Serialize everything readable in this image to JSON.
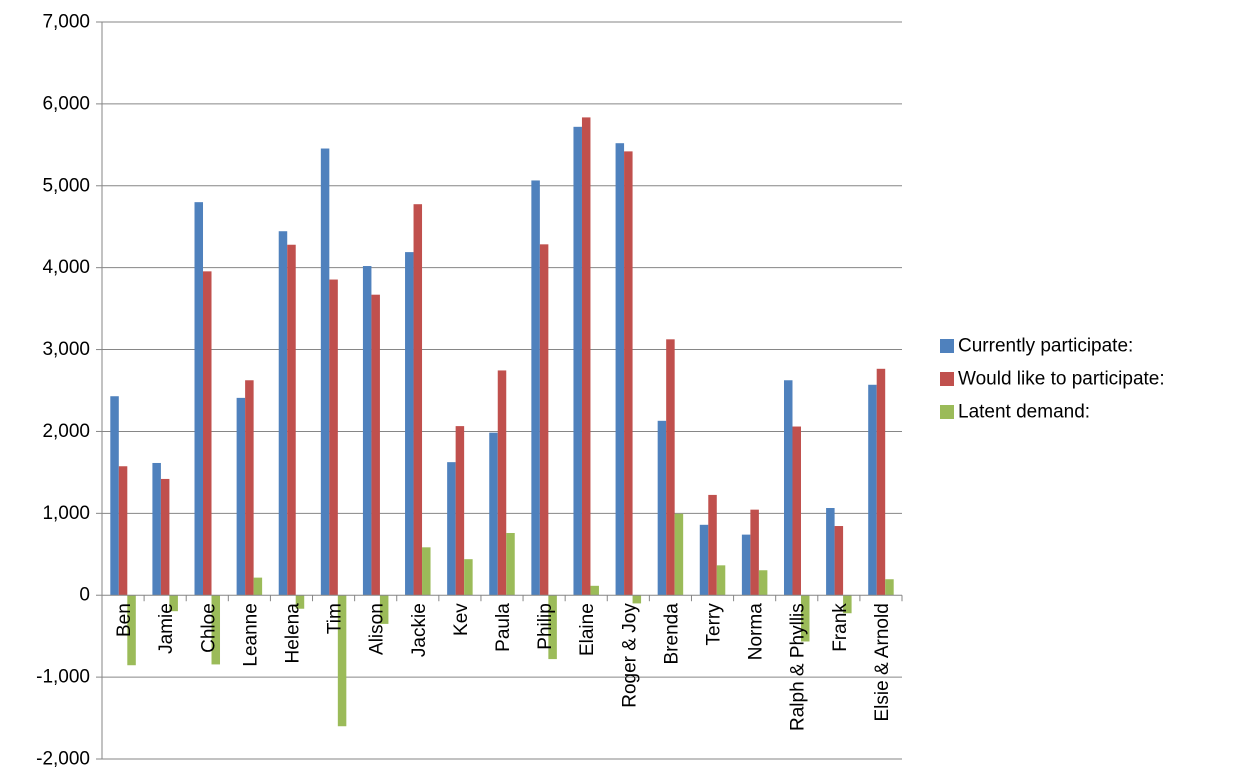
{
  "chart_data": {
    "type": "bar",
    "title": "",
    "xlabel": "",
    "ylabel": "",
    "ylim": [
      -2000,
      7000
    ],
    "y_ticks": [
      7000,
      6000,
      5000,
      4000,
      3000,
      2000,
      1000,
      0,
      -1000,
      -2000
    ],
    "y_tick_labels": [
      "7,000",
      "6,000",
      "5,000",
      "4,000",
      "3,000",
      "2,000",
      "1,000",
      "0",
      "-1,000",
      "-2,000"
    ],
    "grid": true,
    "legend_position": "right",
    "categories": [
      "Ben",
      "Jamie",
      "Chloe",
      "Leanne",
      "Helena",
      "Tim",
      "Alison",
      "Jackie",
      "Kev",
      "Paula",
      "Philip",
      "Elaine",
      "Roger & Joy",
      "Brenda",
      "Terry",
      "Norma",
      "Ralph & Phyllis",
      "Frank",
      "Elsie & Arnold"
    ],
    "series": [
      {
        "name": "Currently participate:",
        "color": "#4F81BD",
        "values": [
          2430,
          1615,
          4800,
          2410,
          4445,
          5455,
          4020,
          4190,
          1625,
          1985,
          5065,
          5720,
          5520,
          2130,
          860,
          740,
          2625,
          1065,
          2570
        ]
      },
      {
        "name": "Would like to participate:",
        "color": "#C0504D",
        "values": [
          1575,
          1420,
          3955,
          2625,
          4280,
          3855,
          3670,
          4775,
          2065,
          2745,
          4285,
          5835,
          5420,
          3125,
          1225,
          1045,
          2060,
          845,
          2765
        ]
      },
      {
        "name": "Latent demand:",
        "color": "#9BBB59",
        "values": [
          -855,
          -195,
          -845,
          215,
          -165,
          -1600,
          -350,
          585,
          440,
          760,
          -780,
          115,
          -100,
          995,
          365,
          305,
          -565,
          -220,
          195
        ]
      }
    ]
  }
}
